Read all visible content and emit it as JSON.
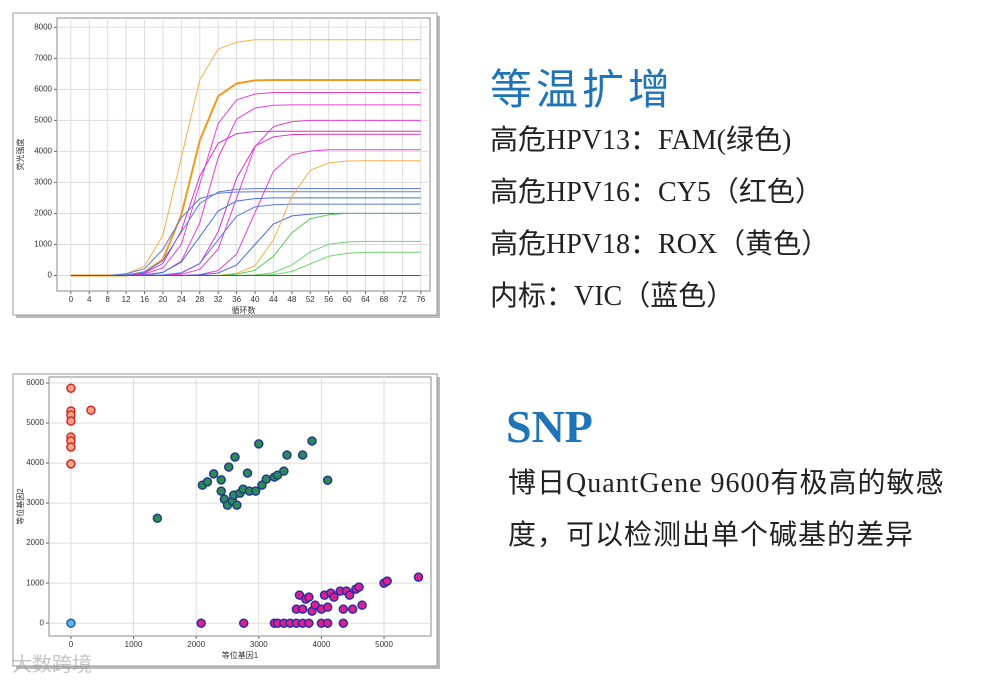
{
  "chart_data": [
    {
      "type": "line",
      "x_label": "循环数",
      "y_label": "荧光强度",
      "x": [
        0,
        4,
        8,
        12,
        16,
        20,
        24,
        28,
        32,
        36,
        40,
        44,
        48,
        52,
        56,
        60,
        64,
        68,
        72,
        76
      ],
      "xlim": [
        -3,
        78
      ],
      "ylim": [
        -500,
        8300
      ],
      "xticks": [
        0,
        4,
        8,
        12,
        16,
        20,
        24,
        28,
        32,
        36,
        40,
        44,
        48,
        52,
        56,
        60,
        64,
        68,
        72,
        76
      ],
      "yticks": [
        0,
        1000,
        2000,
        3000,
        4000,
        5000,
        6000,
        7000,
        8000
      ],
      "grid": true,
      "series": [
        {
          "color": "#f7b04a",
          "values": [
            0,
            0,
            0,
            60,
            300,
            1290,
            3800,
            6310,
            7300,
            7520,
            7600,
            7600,
            7600,
            7600,
            7600,
            7600,
            7600,
            7600,
            7600,
            7600
          ]
        },
        {
          "color": "#f39a1e",
          "values": [
            0,
            0,
            0,
            0,
            110,
            520,
            1950,
            4350,
            5780,
            6190,
            6290,
            6300,
            6300,
            6300,
            6300,
            6300,
            6300,
            6300,
            6300,
            6300
          ]
        },
        {
          "color": "#e83fd8",
          "values": [
            0,
            0,
            0,
            0,
            50,
            240,
            1000,
            2950,
            4900,
            5660,
            5850,
            5900,
            5900,
            5900,
            5900,
            5900,
            5900,
            5900,
            5900,
            5900
          ]
        },
        {
          "color": "#e83fd8",
          "values": [
            0,
            0,
            0,
            0,
            0,
            100,
            460,
            1700,
            3800,
            5040,
            5400,
            5490,
            5500,
            5500,
            5500,
            5500,
            5500,
            5500,
            5500,
            5500
          ]
        },
        {
          "color": "#d92fd0",
          "values": [
            0,
            0,
            0,
            0,
            80,
            390,
            1440,
            3210,
            4260,
            4570,
            4640,
            4650,
            4650,
            4650,
            4650,
            4650,
            4650,
            4650,
            4650,
            4650
          ]
        },
        {
          "color": "#d92fd0",
          "values": [
            0,
            0,
            0,
            0,
            0,
            0,
            80,
            380,
            1410,
            3140,
            4170,
            4470,
            4540,
            4550,
            4550,
            4550,
            4550,
            4550,
            4550,
            4550
          ]
        },
        {
          "color": "#e83fd8",
          "values": [
            0,
            0,
            0,
            0,
            0,
            0,
            0,
            30,
            160,
            690,
            2030,
            3360,
            3890,
            4010,
            4050,
            4050,
            4050,
            4050,
            4050,
            4050
          ]
        },
        {
          "color": "#e83fd8",
          "values": [
            0,
            0,
            0,
            0,
            0,
            0,
            40,
            200,
            850,
            2500,
            4150,
            4800,
            4960,
            5000,
            5000,
            5000,
            5000,
            5000,
            5000,
            5000
          ]
        },
        {
          "color": "#5b79e8",
          "values": [
            0,
            0,
            0,
            20,
            110,
            480,
            1400,
            2320,
            2690,
            2780,
            2800,
            2800,
            2800,
            2800,
            2800,
            2800,
            2800,
            2800,
            2800,
            2800
          ]
        },
        {
          "color": "#4a6de0",
          "values": [
            0,
            0,
            0,
            0,
            20,
            100,
            430,
            1250,
            2080,
            2400,
            2480,
            2500,
            2500,
            2500,
            2500,
            2500,
            2500,
            2500,
            2500,
            2500
          ]
        },
        {
          "color": "#5b79e8",
          "values": [
            0,
            0,
            0,
            0,
            0,
            20,
            90,
            390,
            1150,
            1910,
            2210,
            2280,
            2300,
            2300,
            2300,
            2300,
            2300,
            2300,
            2300,
            2300
          ]
        },
        {
          "color": "#4a6de0",
          "values": [
            0,
            0,
            0,
            0,
            0,
            0,
            0,
            20,
            80,
            340,
            1000,
            1660,
            1920,
            1980,
            2000,
            2000,
            2000,
            2000,
            2000,
            2000
          ]
        },
        {
          "color": "#5b79e8",
          "values": [
            0,
            0,
            0,
            50,
            220,
            840,
            1860,
            2480,
            2650,
            2690,
            2700,
            2700,
            2700,
            2700,
            2700,
            2700,
            2700,
            2700,
            2700,
            2700
          ]
        },
        {
          "color": "#f7b04a",
          "values": [
            0,
            0,
            0,
            0,
            0,
            0,
            0,
            0,
            0,
            70,
            310,
            1150,
            2550,
            3390,
            3630,
            3690,
            3700,
            3700,
            3700,
            3700
          ]
        },
        {
          "color": "#5cc85c",
          "values": [
            0,
            0,
            0,
            0,
            0,
            0,
            0,
            0,
            0,
            40,
            170,
            620,
            1380,
            1830,
            1960,
            2000,
            2000,
            2000,
            2000,
            2000
          ]
        },
        {
          "color": "#6fd46f",
          "values": [
            0,
            0,
            0,
            0,
            0,
            0,
            0,
            0,
            0,
            0,
            20,
            90,
            340,
            760,
            1010,
            1080,
            1100,
            1100,
            1100,
            1100
          ]
        },
        {
          "color": "#6fd46f",
          "values": [
            0,
            0,
            0,
            0,
            0,
            0,
            0,
            0,
            0,
            0,
            0,
            30,
            130,
            375,
            620,
            720,
            745,
            750,
            750,
            750
          ]
        },
        {
          "color": "#e02020",
          "values": [
            0,
            0,
            0,
            0,
            0,
            0,
            0,
            0,
            0,
            0,
            0,
            0,
            0,
            0,
            0,
            0,
            0,
            0,
            0,
            0
          ]
        }
      ]
    },
    {
      "type": "scatter",
      "x_label": "等位基因1",
      "y_label": "等位基因2",
      "xlim": [
        -350,
        5750
      ],
      "ylim": [
        -320,
        6150
      ],
      "xticks": [
        0,
        1000,
        2000,
        3000,
        4000,
        5000
      ],
      "yticks": [
        0,
        1000,
        2000,
        3000,
        4000,
        5000,
        6000
      ],
      "grid": true,
      "series": [
        {
          "color": "#f4a582",
          "edgecolor": "#d62728",
          "x": [
            0,
            0,
            0,
            0,
            0,
            0,
            0,
            0,
            320
          ],
          "values": [
            5870,
            5300,
            5200,
            5050,
            4650,
            4550,
            4400,
            3980,
            5320
          ]
        },
        {
          "color": "#2e8b57",
          "edgecolor": "#1f3c88",
          "x": [
            1380,
            2100,
            2180,
            2280,
            2400,
            2400,
            2450,
            2500,
            2520,
            2580,
            2600,
            2620,
            2650,
            2700,
            2750,
            2820,
            2850,
            2950,
            3000,
            3050,
            3120,
            3250,
            3300,
            3400,
            3450,
            3700,
            3850,
            4100
          ],
          "values": [
            2620,
            3450,
            3530,
            3730,
            3580,
            3300,
            3100,
            2950,
            3900,
            3050,
            3200,
            4150,
            2950,
            3250,
            3350,
            3750,
            3300,
            3300,
            4480,
            3450,
            3600,
            3650,
            3700,
            3800,
            4200,
            4200,
            4550,
            3570
          ]
        },
        {
          "color": "#e0208a",
          "edgecolor": "#2a2aa8",
          "x": [
            2080,
            2760,
            3250,
            3300,
            3400,
            3500,
            3600,
            3700,
            3800,
            4000,
            4100,
            4350,
            3600,
            3650,
            3700,
            3750,
            3800,
            3850,
            3900,
            4000,
            4050,
            4100,
            4150,
            4200,
            4300,
            4350,
            4400,
            4450,
            4500,
            4550,
            4600,
            4650,
            5000,
            5050,
            5550
          ],
          "values": [
            0,
            0,
            0,
            0,
            0,
            0,
            0,
            0,
            0,
            0,
            0,
            0,
            350,
            700,
            350,
            600,
            650,
            300,
            450,
            350,
            700,
            400,
            750,
            650,
            800,
            350,
            800,
            700,
            350,
            850,
            900,
            450,
            1000,
            1050,
            1150
          ]
        },
        {
          "color": "#5ab4f0",
          "edgecolor": "#1f5fa8",
          "x": [
            0
          ],
          "values": [
            0
          ]
        }
      ]
    }
  ],
  "text": {
    "title": "等温扩增",
    "lines": [
      "高危HPV13：FAM(绿色)",
      "高危HPV16：CY5（红色）",
      "高危HPV18：ROX（黄色）",
      "内标：VIC（蓝色）"
    ],
    "snp_title": "SNP",
    "snp_text": "博日QuantGene 9600有极高的敏感度，可以检测出单个碱基的差异",
    "watermark": "大数跨境"
  }
}
